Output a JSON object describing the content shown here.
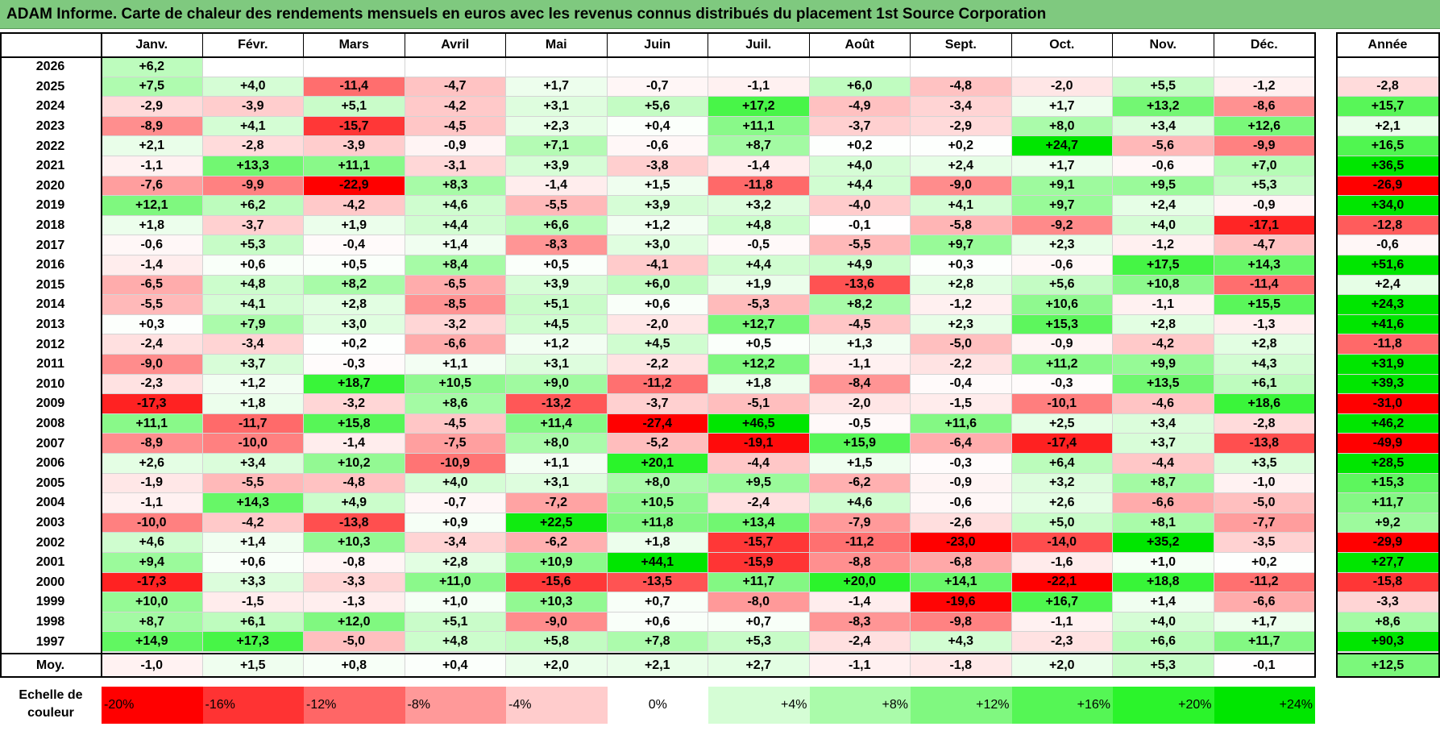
{
  "title": "ADAM Informe. Carte de chaleur des rendements mensuels en euros avec les revenus connus distribués du placement 1st Source Corporation",
  "chart_data": {
    "type": "heatmap",
    "months": [
      "Janv.",
      "Févr.",
      "Mars",
      "Avril",
      "Mai",
      "Juin",
      "Juil.",
      "Août",
      "Sept.",
      "Oct.",
      "Nov.",
      "Déc."
    ],
    "annual_header": "Année",
    "rows": [
      {
        "year": "2026",
        "values": [
          6.2,
          null,
          null,
          null,
          null,
          null,
          null,
          null,
          null,
          null,
          null,
          null
        ],
        "annual": null
      },
      {
        "year": "2025",
        "values": [
          7.5,
          4.0,
          -11.4,
          -4.7,
          1.7,
          -0.7,
          -1.1,
          6.0,
          -4.8,
          -2.0,
          5.5,
          -1.2
        ],
        "annual": -2.8
      },
      {
        "year": "2024",
        "values": [
          -2.9,
          -3.9,
          5.1,
          -4.2,
          3.1,
          5.6,
          17.2,
          -4.9,
          -3.4,
          1.7,
          13.2,
          -8.6
        ],
        "annual": 15.7
      },
      {
        "year": "2023",
        "values": [
          -8.9,
          4.1,
          -15.7,
          -4.5,
          2.3,
          0.4,
          11.1,
          -3.7,
          -2.9,
          8.0,
          3.4,
          12.6
        ],
        "annual": 2.1
      },
      {
        "year": "2022",
        "values": [
          2.1,
          -2.8,
          -3.9,
          -0.9,
          7.1,
          -0.6,
          8.7,
          0.2,
          0.2,
          24.7,
          -5.6,
          -9.9
        ],
        "annual": 16.5
      },
      {
        "year": "2021",
        "values": [
          -1.1,
          13.3,
          11.1,
          -3.1,
          3.9,
          -3.8,
          -1.4,
          4.0,
          2.4,
          1.7,
          -0.6,
          7.0
        ],
        "annual": 36.5
      },
      {
        "year": "2020",
        "values": [
          -7.6,
          -9.9,
          -22.9,
          8.3,
          -1.4,
          1.5,
          -11.8,
          4.4,
          -9.0,
          9.1,
          9.5,
          5.3
        ],
        "annual": -26.9
      },
      {
        "year": "2019",
        "values": [
          12.1,
          6.2,
          -4.2,
          4.6,
          -5.5,
          3.9,
          3.2,
          -4.0,
          4.1,
          9.7,
          2.4,
          -0.9
        ],
        "annual": 34.0
      },
      {
        "year": "2018",
        "values": [
          1.8,
          -3.7,
          1.9,
          4.4,
          6.6,
          1.2,
          4.8,
          -0.1,
          -5.8,
          -9.2,
          4.0,
          -17.1
        ],
        "annual": -12.8
      },
      {
        "year": "2017",
        "values": [
          -0.6,
          5.3,
          -0.4,
          1.4,
          -8.3,
          3.0,
          -0.5,
          -5.5,
          9.7,
          2.3,
          -1.2,
          -4.7
        ],
        "annual": -0.6
      },
      {
        "year": "2016",
        "values": [
          -1.4,
          0.6,
          0.5,
          8.4,
          0.5,
          -4.1,
          4.4,
          4.9,
          0.3,
          -0.6,
          17.5,
          14.3
        ],
        "annual": 51.6
      },
      {
        "year": "2015",
        "values": [
          -6.5,
          4.8,
          8.2,
          -6.5,
          3.9,
          6.0,
          1.9,
          -13.6,
          2.8,
          5.6,
          10.8,
          -11.4
        ],
        "annual": 2.4
      },
      {
        "year": "2014",
        "values": [
          -5.5,
          4.1,
          2.8,
          -8.5,
          5.1,
          0.6,
          -5.3,
          8.2,
          -1.2,
          10.6,
          -1.1,
          15.5
        ],
        "annual": 24.3
      },
      {
        "year": "2013",
        "values": [
          0.3,
          7.9,
          3.0,
          -3.2,
          4.5,
          -2.0,
          12.7,
          -4.5,
          2.3,
          15.3,
          2.8,
          -1.3
        ],
        "annual": 41.6
      },
      {
        "year": "2012",
        "values": [
          -2.4,
          -3.4,
          0.2,
          -6.6,
          1.2,
          4.5,
          0.5,
          1.3,
          -5.0,
          -0.9,
          -4.2,
          2.8
        ],
        "annual": -11.8
      },
      {
        "year": "2011",
        "values": [
          -9.0,
          3.7,
          -0.3,
          1.1,
          3.1,
          -2.2,
          12.2,
          -1.1,
          -2.2,
          11.2,
          9.9,
          4.3
        ],
        "annual": 31.9
      },
      {
        "year": "2010",
        "values": [
          -2.3,
          1.2,
          18.7,
          10.5,
          9.0,
          -11.2,
          1.8,
          -8.4,
          -0.4,
          -0.3,
          13.5,
          6.1
        ],
        "annual": 39.3
      },
      {
        "year": "2009",
        "values": [
          -17.3,
          1.8,
          -3.2,
          8.6,
          -13.2,
          -3.7,
          -5.1,
          -2.0,
          -1.5,
          -10.1,
          -4.6,
          18.6
        ],
        "annual": -31.0
      },
      {
        "year": "2008",
        "values": [
          11.1,
          -11.7,
          15.8,
          -4.5,
          11.4,
          -27.4,
          46.5,
          -0.5,
          11.6,
          2.5,
          3.4,
          -2.8
        ],
        "annual": 46.2
      },
      {
        "year": "2007",
        "values": [
          -8.9,
          -10.0,
          -1.4,
          -7.5,
          8.0,
          -5.2,
          -19.1,
          15.9,
          -6.4,
          -17.4,
          3.7,
          -13.8
        ],
        "annual": -49.9
      },
      {
        "year": "2006",
        "values": [
          2.6,
          3.4,
          10.2,
          -10.9,
          1.1,
          20.1,
          -4.4,
          1.5,
          -0.3,
          6.4,
          -4.4,
          3.5
        ],
        "annual": 28.5
      },
      {
        "year": "2005",
        "values": [
          -1.9,
          -5.5,
          -4.8,
          4.0,
          3.1,
          8.0,
          9.5,
          -6.2,
          -0.9,
          3.2,
          8.7,
          -1.0
        ],
        "annual": 15.3
      },
      {
        "year": "2004",
        "values": [
          -1.1,
          14.3,
          4.9,
          -0.7,
          -7.2,
          10.5,
          -2.4,
          4.6,
          -0.6,
          2.6,
          -6.6,
          -5.0
        ],
        "annual": 11.7
      },
      {
        "year": "2003",
        "values": [
          -10.0,
          -4.2,
          -13.8,
          0.9,
          22.5,
          11.8,
          13.4,
          -7.9,
          -2.6,
          5.0,
          8.1,
          -7.7
        ],
        "annual": 9.2
      },
      {
        "year": "2002",
        "values": [
          4.6,
          1.4,
          10.3,
          -3.4,
          -6.2,
          1.8,
          -15.7,
          -11.2,
          -23.0,
          -14.0,
          35.2,
          -3.5
        ],
        "annual": -29.9
      },
      {
        "year": "2001",
        "values": [
          9.4,
          0.6,
          -0.8,
          2.8,
          10.9,
          44.1,
          -15.9,
          -8.8,
          -6.8,
          -1.6,
          1.0,
          0.2
        ],
        "annual": 27.7
      },
      {
        "year": "2000",
        "values": [
          -17.3,
          3.3,
          -3.3,
          11.0,
          -15.6,
          -13.5,
          11.7,
          20.0,
          14.1,
          -22.1,
          18.8,
          -11.2
        ],
        "annual": -15.8
      },
      {
        "year": "1999",
        "values": [
          10.0,
          -1.5,
          -1.3,
          1.0,
          10.3,
          0.7,
          -8.0,
          -1.4,
          -19.6,
          16.7,
          1.4,
          -6.6
        ],
        "annual": -3.3
      },
      {
        "year": "1998",
        "values": [
          8.7,
          6.1,
          12.0,
          5.1,
          -9.0,
          0.6,
          0.7,
          -8.3,
          -9.8,
          -1.1,
          4.0,
          1.7
        ],
        "annual": 8.6
      },
      {
        "year": "1997",
        "values": [
          14.9,
          17.3,
          -5.0,
          4.8,
          5.8,
          7.8,
          5.3,
          -2.4,
          4.3,
          -2.3,
          6.6,
          11.7
        ],
        "annual": 90.3
      }
    ],
    "average": {
      "label": "Moy.",
      "values": [
        -1.0,
        1.5,
        0.8,
        0.4,
        2.0,
        2.1,
        2.7,
        -1.1,
        -1.8,
        2.0,
        5.3,
        -0.1
      ],
      "annual": 12.5
    },
    "legend": {
      "title_line1": "Echelle de",
      "title_line2": "couleur",
      "stops": [
        {
          "label": "-20%",
          "value": -20,
          "color": "#ff0000"
        },
        {
          "label": "-16%",
          "value": -16,
          "color": "#ff3333"
        },
        {
          "label": "-12%",
          "value": -12,
          "color": "#ff6666"
        },
        {
          "label": "-8%",
          "value": -8,
          "color": "#ff9999"
        },
        {
          "label": "-4%",
          "value": -4,
          "color": "#ffcccc"
        },
        {
          "label": "0%",
          "value": 0,
          "color": "#ffffff"
        },
        {
          "label": "+4%",
          "value": 4,
          "color": "#d5fdd5"
        },
        {
          "label": "+8%",
          "value": 8,
          "color": "#aafbaa"
        },
        {
          "label": "+12%",
          "value": 12,
          "color": "#80f880"
        },
        {
          "label": "+16%",
          "value": 16,
          "color": "#55f655"
        },
        {
          "label": "+20%",
          "value": 20,
          "color": "#2bf42b"
        },
        {
          "label": "+24%",
          "value": 24,
          "color": "#00e600"
        }
      ]
    }
  }
}
